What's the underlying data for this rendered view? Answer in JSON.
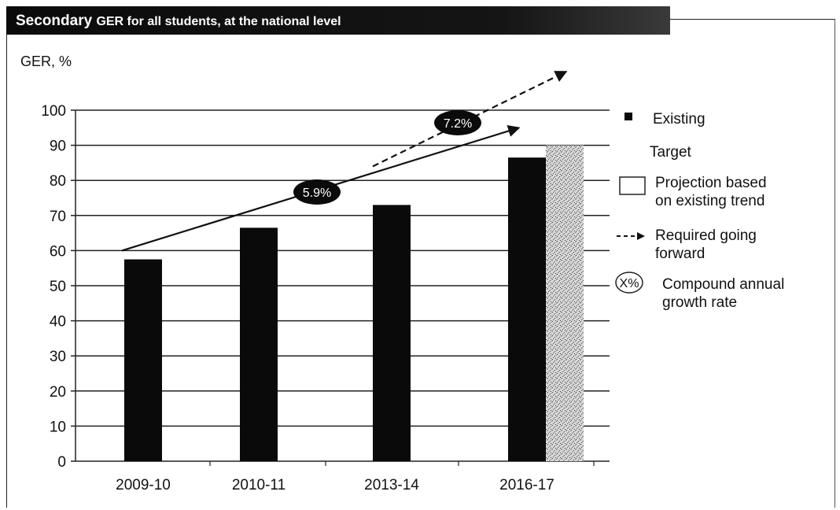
{
  "header": {
    "title_main": "Secondary",
    "title_rest": "GER for all students, at the national level"
  },
  "chart_data": {
    "type": "bar",
    "categories": [
      "2009-10",
      "2010-11",
      "2013-14",
      "2016-17"
    ],
    "series": [
      {
        "name": "Existing",
        "values": [
          57.5,
          66.5,
          73,
          86.5
        ]
      },
      {
        "name": "Target",
        "values": [
          null,
          null,
          null,
          90
        ]
      }
    ],
    "ylabel": "GER, %",
    "ylim": [
      0,
      100
    ],
    "yticks": [
      0,
      10,
      20,
      30,
      40,
      50,
      60,
      70,
      80,
      90,
      100
    ],
    "grid": true,
    "legend_position": "right",
    "trend_lines": [
      {
        "name": "Projection based on existing trend",
        "style": "solid",
        "from": {
          "x": "2009-10",
          "y": 60
        },
        "to": {
          "x": "2016-17",
          "y": 95
        },
        "rate_label": "5.9%"
      },
      {
        "name": "Required going forward",
        "style": "dashed",
        "from": {
          "x": "2013-14",
          "y": 84
        },
        "to": {
          "x": "2016-17",
          "y": 111
        },
        "rate_label": "7.2%"
      }
    ],
    "colors": {
      "existing": "#0a0a0a",
      "target": "#b8b8b8",
      "line": "#111111"
    }
  },
  "legend": [
    {
      "key": "existing",
      "label": "Existing"
    },
    {
      "key": "target",
      "label": "Target"
    },
    {
      "key": "projection",
      "label_1": "Projection based",
      "label_2": "on existing trend"
    },
    {
      "key": "required",
      "label_1": "Required going",
      "label_2": "forward"
    },
    {
      "key": "cagr",
      "symbol": "X%",
      "label_1": "Compound annual",
      "label_2": "growth rate"
    }
  ]
}
